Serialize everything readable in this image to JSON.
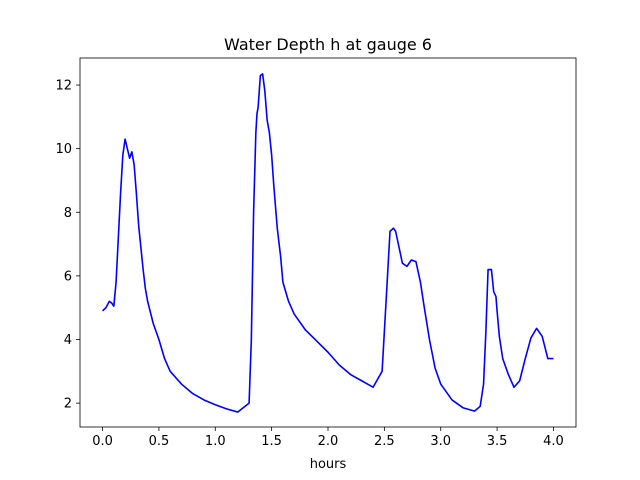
{
  "chart_data": {
    "type": "line",
    "title": "Water Depth h at gauge 6",
    "xlabel": "hours",
    "ylabel": "",
    "xlim": [
      -0.2,
      4.2
    ],
    "ylim": [
      1.25,
      12.85
    ],
    "xticks": [
      0.0,
      0.5,
      1.0,
      1.5,
      2.0,
      2.5,
      3.0,
      3.5,
      4.0
    ],
    "xtick_labels": [
      "0.0",
      "0.5",
      "1.0",
      "1.5",
      "2.0",
      "2.5",
      "3.0",
      "3.5",
      "4.0"
    ],
    "yticks": [
      2,
      4,
      6,
      8,
      10,
      12
    ],
    "ytick_labels": [
      "2",
      "4",
      "6",
      "8",
      "10",
      "12"
    ],
    "grid": false,
    "series": [
      {
        "color": "#0000ff",
        "x": [
          0.0,
          0.03,
          0.06,
          0.08,
          0.1,
          0.12,
          0.14,
          0.16,
          0.18,
          0.2,
          0.22,
          0.24,
          0.26,
          0.28,
          0.3,
          0.32,
          0.34,
          0.36,
          0.38,
          0.4,
          0.45,
          0.5,
          0.55,
          0.6,
          0.65,
          0.7,
          0.8,
          0.9,
          1.0,
          1.1,
          1.2,
          1.3,
          1.32,
          1.34,
          1.36,
          1.37,
          1.38,
          1.39,
          1.4,
          1.42,
          1.44,
          1.46,
          1.48,
          1.5,
          1.52,
          1.55,
          1.58,
          1.6,
          1.65,
          1.7,
          1.8,
          1.9,
          2.0,
          2.1,
          2.2,
          2.3,
          2.4,
          2.48,
          2.52,
          2.55,
          2.58,
          2.6,
          2.63,
          2.66,
          2.7,
          2.74,
          2.78,
          2.82,
          2.85,
          2.9,
          2.95,
          3.0,
          3.1,
          3.2,
          3.3,
          3.35,
          3.38,
          3.4,
          3.42,
          3.45,
          3.47,
          3.49,
          3.5,
          3.52,
          3.55,
          3.6,
          3.65,
          3.7,
          3.75,
          3.8,
          3.85,
          3.9,
          3.95,
          4.0
        ],
        "y": [
          4.9,
          5.0,
          5.2,
          5.15,
          5.05,
          5.8,
          7.2,
          8.6,
          9.8,
          10.3,
          10.0,
          9.7,
          9.9,
          9.5,
          8.6,
          7.6,
          6.9,
          6.2,
          5.6,
          5.2,
          4.5,
          4.0,
          3.4,
          3.0,
          2.8,
          2.6,
          2.3,
          2.1,
          1.95,
          1.82,
          1.72,
          2.0,
          4.0,
          8.0,
          10.5,
          11.1,
          11.3,
          11.8,
          12.3,
          12.35,
          11.8,
          10.9,
          10.5,
          9.8,
          8.8,
          7.5,
          6.6,
          5.8,
          5.2,
          4.8,
          4.3,
          3.95,
          3.6,
          3.2,
          2.9,
          2.7,
          2.5,
          3.0,
          5.5,
          7.4,
          7.5,
          7.4,
          6.9,
          6.4,
          6.3,
          6.5,
          6.45,
          5.8,
          5.1,
          4.0,
          3.1,
          2.6,
          2.1,
          1.85,
          1.75,
          1.9,
          2.6,
          4.2,
          6.2,
          6.2,
          5.5,
          5.35,
          4.9,
          4.1,
          3.4,
          2.9,
          2.5,
          2.7,
          3.4,
          4.05,
          4.35,
          4.1,
          3.4,
          3.4
        ]
      }
    ]
  }
}
